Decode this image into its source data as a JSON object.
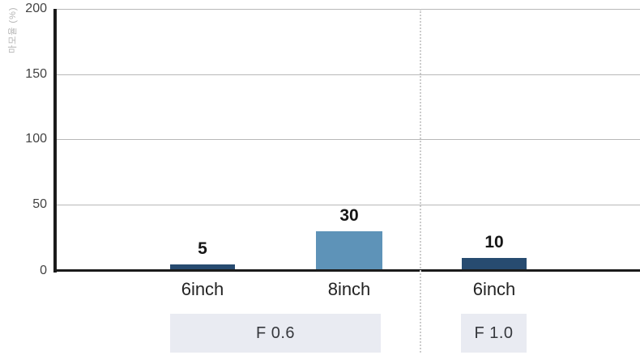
{
  "chart_data": {
    "type": "bar",
    "title": "",
    "xlabel": "",
    "ylabel": "마모율 (%)",
    "ylim": [
      0,
      200
    ],
    "yticks": [
      "200",
      "150",
      "100",
      "50",
      "0"
    ],
    "grid": "horizontal",
    "legend": "none",
    "categories": [
      "6inch",
      "8inch",
      "6inch"
    ],
    "values": [
      5,
      30,
      10
    ],
    "bars": [
      {
        "category": "6inch",
        "value": "5",
        "numeric_value": 5,
        "group": "F 0.6",
        "color": "#274b70"
      },
      {
        "category": "8inch",
        "value": "30",
        "numeric_value": 30,
        "group": "F 0.6",
        "color": "#5e93b8"
      },
      {
        "category": "6inch",
        "value": "10",
        "numeric_value": 10,
        "group": "F 1.0",
        "color": "#274b70"
      }
    ],
    "groups": [
      {
        "label": "F 0.6",
        "categories": [
          "6inch",
          "8inch"
        ]
      },
      {
        "label": "F 1.0",
        "categories": [
          "6inch"
        ]
      }
    ],
    "annotations": "dotted vertical separator line between group F 0.6 and group F 1.0"
  },
  "colors": {
    "background": "#ffffff",
    "bar_navy": "#274b70",
    "bar_steel_blue": "#5e93b8",
    "axis_line": "#1b1b1b",
    "gridline": "#b8b8b8",
    "separator_dotted": "#cccccc",
    "group_box_bg": "#e9ebf2",
    "tick_text": "#434343",
    "ylabel_text": "#b5b5b5",
    "value_label_text": "#161616"
  }
}
